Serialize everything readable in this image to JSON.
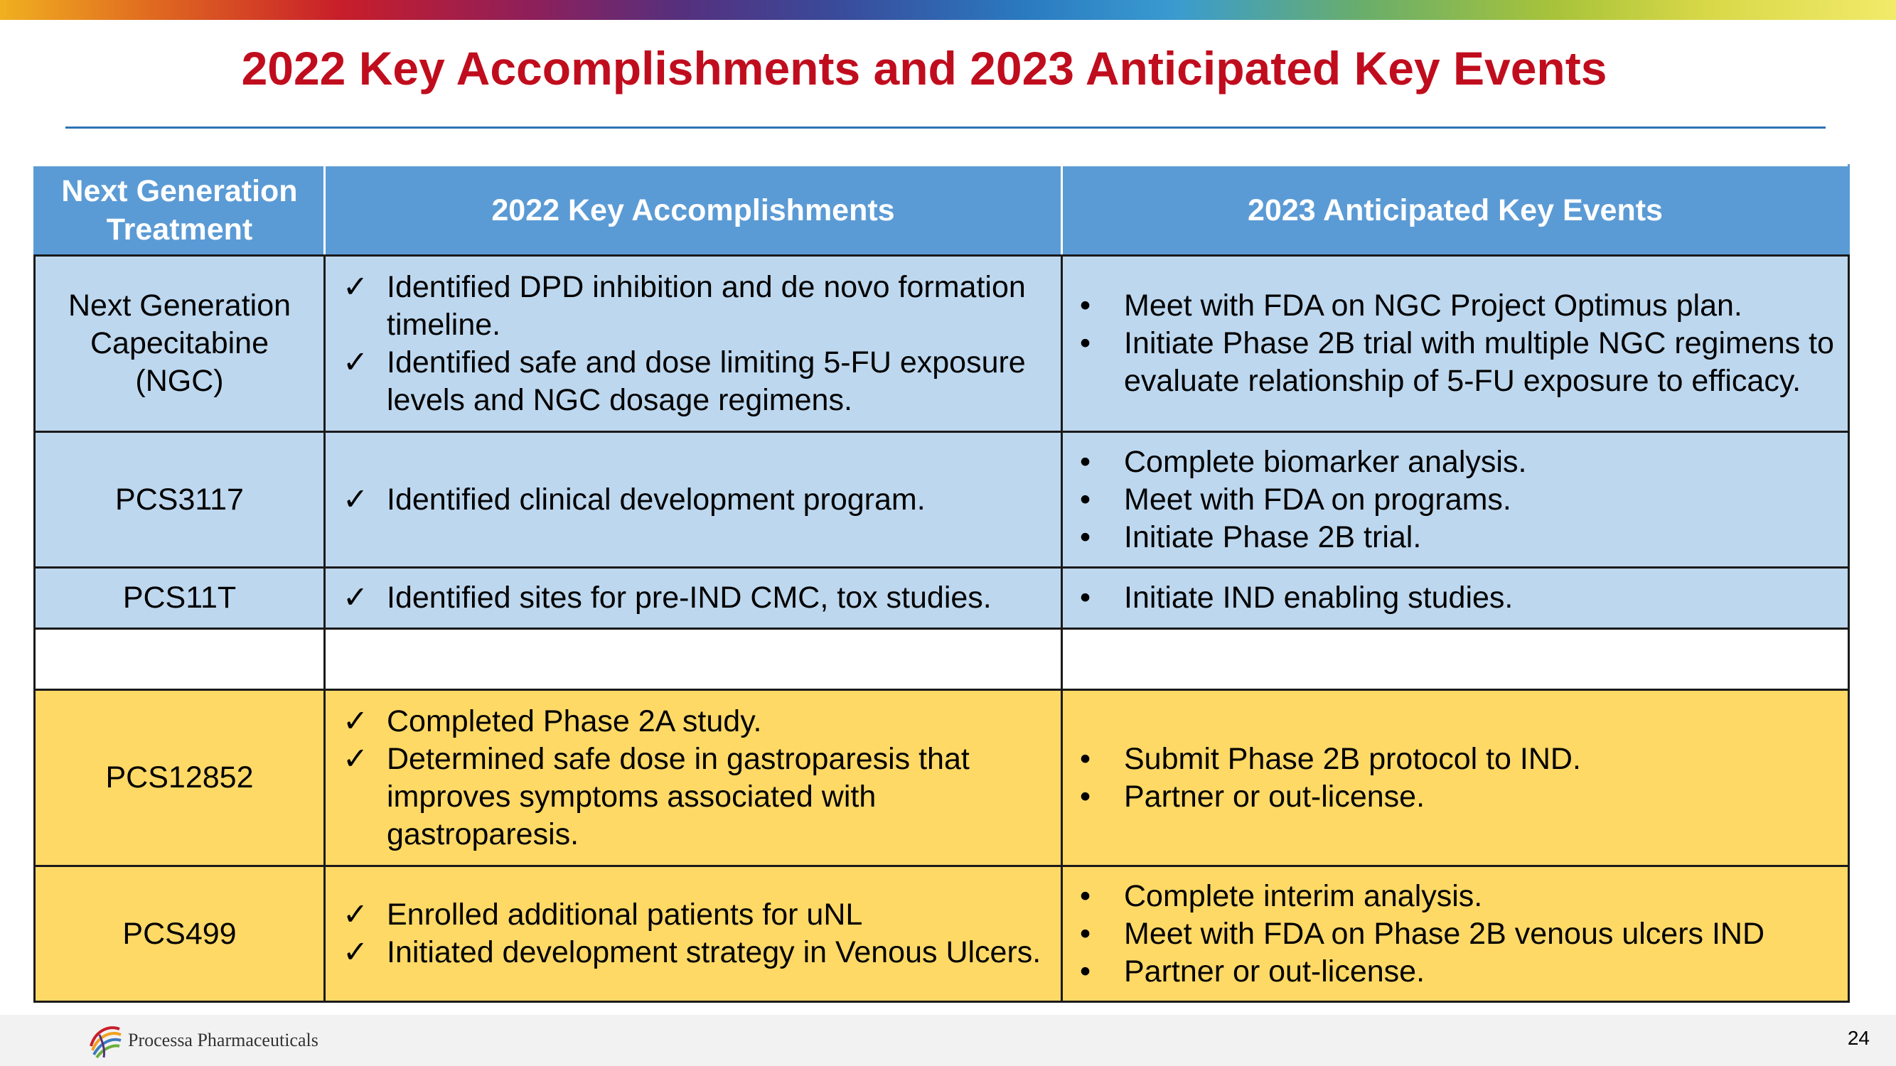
{
  "title": "2022 Key Accomplishments and 2023 Anticipated Key Events",
  "table": {
    "headers": [
      "Next Generation Treatment",
      "2022 Key Accomplishments",
      "2023 Anticipated Key Events"
    ],
    "check_glyph": "✓",
    "bullet_glyph": "•",
    "rows": [
      {
        "name": "Next Generation Capecitabine (NGC)",
        "accomplishments": [
          "Identified DPD inhibition and de novo formation timeline.",
          "Identified safe and dose limiting 5-FU exposure levels and NGC dosage regimens."
        ],
        "events": [
          "Meet with FDA on NGC Project Optimus plan.",
          "Initiate Phase 2B trial with multiple NGC regimens to evaluate relationship of 5-FU exposure to efficacy."
        ]
      },
      {
        "name": "PCS3117",
        "accomplishments": [
          "Identified clinical development program."
        ],
        "events": [
          "Complete biomarker analysis.",
          "Meet with FDA on programs.",
          "Initiate Phase 2B trial."
        ]
      },
      {
        "name": "PCS11T",
        "accomplishments": [
          "Identified sites for pre-IND CMC, tox studies."
        ],
        "events": [
          "Initiate IND enabling studies."
        ]
      },
      {
        "name": "PCS12852",
        "accomplishments": [
          "Completed Phase 2A study.",
          "Determined safe dose in gastroparesis that improves symptoms associated with gastroparesis."
        ],
        "events": [
          "Submit Phase 2B protocol to IND.",
          "Partner or out-license."
        ]
      },
      {
        "name": "PCS499",
        "accomplishments": [
          "Enrolled additional patients for uNL",
          "Initiated development strategy in Venous Ulcers."
        ],
        "events": [
          "Complete interim analysis.",
          "Meet with FDA on Phase 2B venous ulcers IND",
          "Partner or out-license."
        ]
      }
    ]
  },
  "footer": {
    "company": "Processa Pharmaceuticals",
    "page_number": "24"
  },
  "colors": {
    "title": "#c00d1e",
    "header_bg": "#5b9bd5",
    "row_blue": "#bdd7ee",
    "row_yellow": "#ffd966",
    "rule": "#2f73b5"
  },
  "icons": {
    "logo": "processa-swirl-logo-icon"
  }
}
